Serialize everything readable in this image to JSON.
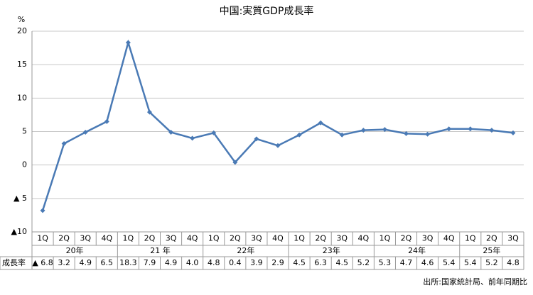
{
  "chart_data": {
    "type": "line",
    "title": "中国:実質GDP成長率",
    "y_label": "%",
    "categories": [
      "1Q",
      "2Q",
      "3Q",
      "4Q",
      "1Q",
      "2Q",
      "3Q",
      "4Q",
      "1Q",
      "2Q",
      "3Q",
      "4Q",
      "1Q",
      "2Q",
      "3Q",
      "4Q",
      "1Q",
      "2Q",
      "3Q",
      "4Q",
      "1Q",
      "2Q",
      "3Q"
    ],
    "year_labels": [
      "20年",
      "21 年",
      "22年",
      "23年",
      "24年",
      "25年"
    ],
    "series": [
      {
        "name": "成長率",
        "color": "#4a7ab5",
        "values": [
          -6.8,
          3.2,
          4.9,
          6.5,
          18.3,
          7.9,
          4.9,
          4.0,
          4.8,
          0.4,
          3.9,
          2.9,
          4.5,
          6.3,
          4.5,
          5.2,
          5.3,
          4.7,
          4.6,
          5.4,
          5.4,
          5.2,
          4.8
        ],
        "value_labels": [
          "▲ 6.8",
          "3.2",
          "4.9",
          "6.5",
          "18.3",
          "7.9",
          "4.9",
          "4.0",
          "4.8",
          "0.4",
          "3.9",
          "2.9",
          "4.5",
          "6.3",
          "4.5",
          "5.2",
          "5.3",
          "4.7",
          "4.6",
          "5.4",
          "5.4",
          "5.2",
          "4.8"
        ]
      }
    ],
    "ylim": [
      -10,
      20
    ],
    "yticks": [
      {
        "value": -10,
        "label": "▲10"
      },
      {
        "value": -5,
        "label": "▲ 5"
      },
      0,
      5,
      10,
      15,
      20
    ],
    "grid": true,
    "source": "出所:国家統計局、前年同期比"
  }
}
